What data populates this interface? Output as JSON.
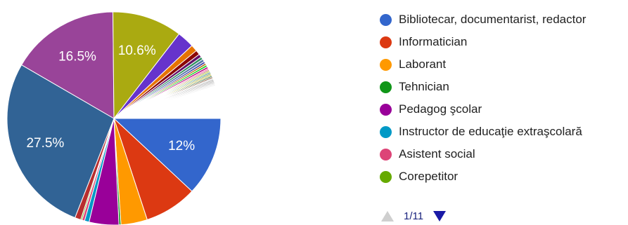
{
  "chart_data": {
    "type": "pie",
    "slices": [
      {
        "label": "Bibliotecar, documentarist, redactor",
        "value": 12.0,
        "color": "#3366cc",
        "data_label": "12%"
      },
      {
        "label": "Informatician",
        "value": 8.0,
        "color": "#dc3912",
        "data_label": ""
      },
      {
        "label": "Laborant",
        "value": 4.0,
        "color": "#ff9900",
        "data_label": ""
      },
      {
        "label": "Tehnician",
        "value": 0.3,
        "color": "#109618",
        "data_label": ""
      },
      {
        "label": "Pedagog şcolar",
        "value": 4.5,
        "color": "#990099",
        "data_label": ""
      },
      {
        "label": "Instructor de educaţie extraşcolară",
        "value": 0.7,
        "color": "#0099c6",
        "data_label": ""
      },
      {
        "label": "Asistent social",
        "value": 0.4,
        "color": "#dd4477",
        "data_label": ""
      },
      {
        "label": "Corepetitor",
        "value": 0.2,
        "color": "#66aa00",
        "data_label": ""
      },
      {
        "label": "",
        "value": 0.9,
        "color": "#b82e2e",
        "data_label": ""
      },
      {
        "label": "",
        "value": 27.5,
        "color": "#316395",
        "data_label": "27.5%"
      },
      {
        "label": "",
        "value": 16.5,
        "color": "#994499",
        "data_label": "16.5%"
      },
      {
        "label": "",
        "value": 10.6,
        "color": "#aaaa11",
        "data_label": "10.6%"
      },
      {
        "label": "",
        "value": 2.6,
        "color": "#6633cc",
        "data_label": ""
      },
      {
        "label": "",
        "value": 1.0,
        "color": "#e67300",
        "data_label": ""
      },
      {
        "label": "",
        "value": 0.7,
        "color": "#8b0707",
        "data_label": ""
      },
      {
        "label": "",
        "value": 0.5,
        "color": "#651067",
        "data_label": ""
      },
      {
        "label": "",
        "value": 0.4,
        "color": "#329262",
        "data_label": ""
      },
      {
        "label": "",
        "value": 0.4,
        "color": "#5574a6",
        "data_label": ""
      },
      {
        "label": "",
        "value": 0.3,
        "color": "#3b3eac",
        "data_label": ""
      },
      {
        "label": "",
        "value": 0.3,
        "color": "#b77322",
        "data_label": ""
      },
      {
        "label": "",
        "value": 0.3,
        "color": "#16d620",
        "data_label": ""
      },
      {
        "label": "",
        "value": 0.3,
        "color": "#b91383",
        "data_label": ""
      },
      {
        "label": "",
        "value": 0.2,
        "color": "#f4359e",
        "data_label": ""
      },
      {
        "label": "",
        "value": 0.2,
        "color": "#9c5935",
        "data_label": ""
      },
      {
        "label": "",
        "value": 0.2,
        "color": "#a9c413",
        "data_label": ""
      },
      {
        "label": "",
        "value": 0.2,
        "color": "#2a778d",
        "data_label": ""
      },
      {
        "label": "",
        "value": 0.2,
        "color": "#668d1c",
        "data_label": ""
      },
      {
        "label": "",
        "value": 0.2,
        "color": "#bea413",
        "data_label": ""
      },
      {
        "label": "",
        "value": 0.2,
        "color": "#0c5922",
        "data_label": ""
      },
      {
        "label": "",
        "value": 0.2,
        "color": "#743411",
        "data_label": ""
      },
      {
        "label": "",
        "value": 0.2,
        "color": "#cccccc",
        "data_label": ""
      },
      {
        "label": "",
        "value": 0.2,
        "color": "#999999",
        "data_label": ""
      },
      {
        "label": "",
        "value": 0.2,
        "color": "#aaaaaa",
        "data_label": ""
      },
      {
        "label": "",
        "value": 0.2,
        "color": "#bbbbbb",
        "data_label": ""
      },
      {
        "label": "",
        "value": 0.2,
        "color": "#dddddd",
        "data_label": ""
      },
      {
        "label": "",
        "value": 0.2,
        "color": "#eeeeee",
        "data_label": ""
      },
      {
        "label": "",
        "value": 5.0,
        "color": "#ffffff",
        "data_label": ""
      }
    ],
    "legend": {
      "placement": "right",
      "items": [
        {
          "label": "Bibliotecar, documentarist, redactor",
          "color": "#3366cc"
        },
        {
          "label": "Informatician",
          "color": "#dc3912"
        },
        {
          "label": "Laborant",
          "color": "#ff9900"
        },
        {
          "label": "Tehnician",
          "color": "#109618"
        },
        {
          "label": "Pedagog şcolar",
          "color": "#990099"
        },
        {
          "label": "Instructor de educaţie extraşcolară",
          "color": "#0099c6"
        },
        {
          "label": "Asistent social",
          "color": "#dd4477"
        },
        {
          "label": "Corepetitor",
          "color": "#66aa00"
        }
      ]
    }
  },
  "pager": {
    "text": "1/11",
    "up_icon": "triangle-up-icon",
    "down_icon": "triangle-down-icon"
  }
}
